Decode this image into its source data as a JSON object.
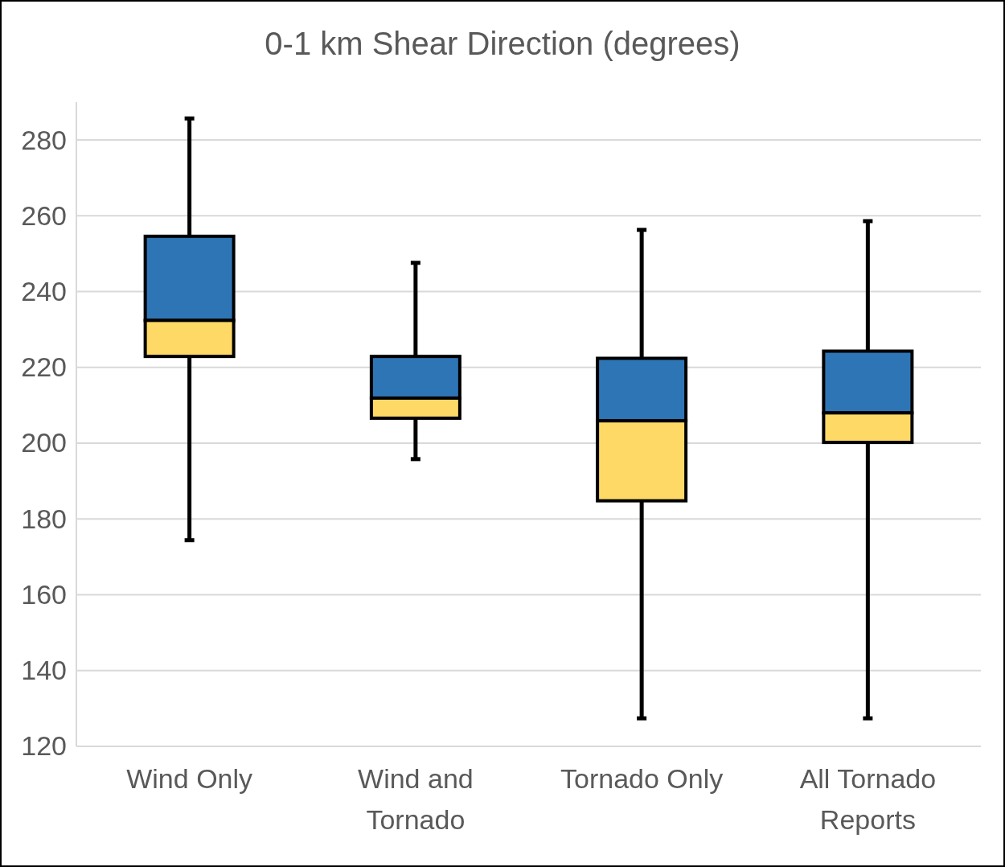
{
  "chart_data": {
    "type": "box",
    "title": "0-1 km Shear Direction (degrees)",
    "categories": [
      "Wind Only",
      "Wind and Tornado",
      "Tornado Only",
      "All Tornado Reports"
    ],
    "boxes": [
      {
        "low": 174.4,
        "q1": 222.9,
        "median": 232.4,
        "q3": 254.6,
        "high": 285.7
      },
      {
        "low": 195.8,
        "q1": 206.6,
        "median": 211.9,
        "q3": 222.9,
        "high": 247.6
      },
      {
        "low": 127.4,
        "q1": 184.8,
        "median": 205.9,
        "q3": 222.4,
        "high": 256.3
      },
      {
        "low": 127.4,
        "q1": 200.2,
        "median": 208.0,
        "q3": 224.3,
        "high": 258.6
      }
    ],
    "colors": [
      [
        "#2e75b6",
        "#ffd966"
      ],
      [
        "#2e75b6",
        "#ffd966"
      ],
      [
        "#2e75b6",
        "#ffd966"
      ],
      [
        "#2e75b6",
        "#ffd966"
      ]
    ],
    "ylim": [
      120,
      290
    ],
    "yticks": [
      120,
      140,
      160,
      180,
      200,
      220,
      240,
      260,
      280
    ],
    "grid": "y"
  }
}
